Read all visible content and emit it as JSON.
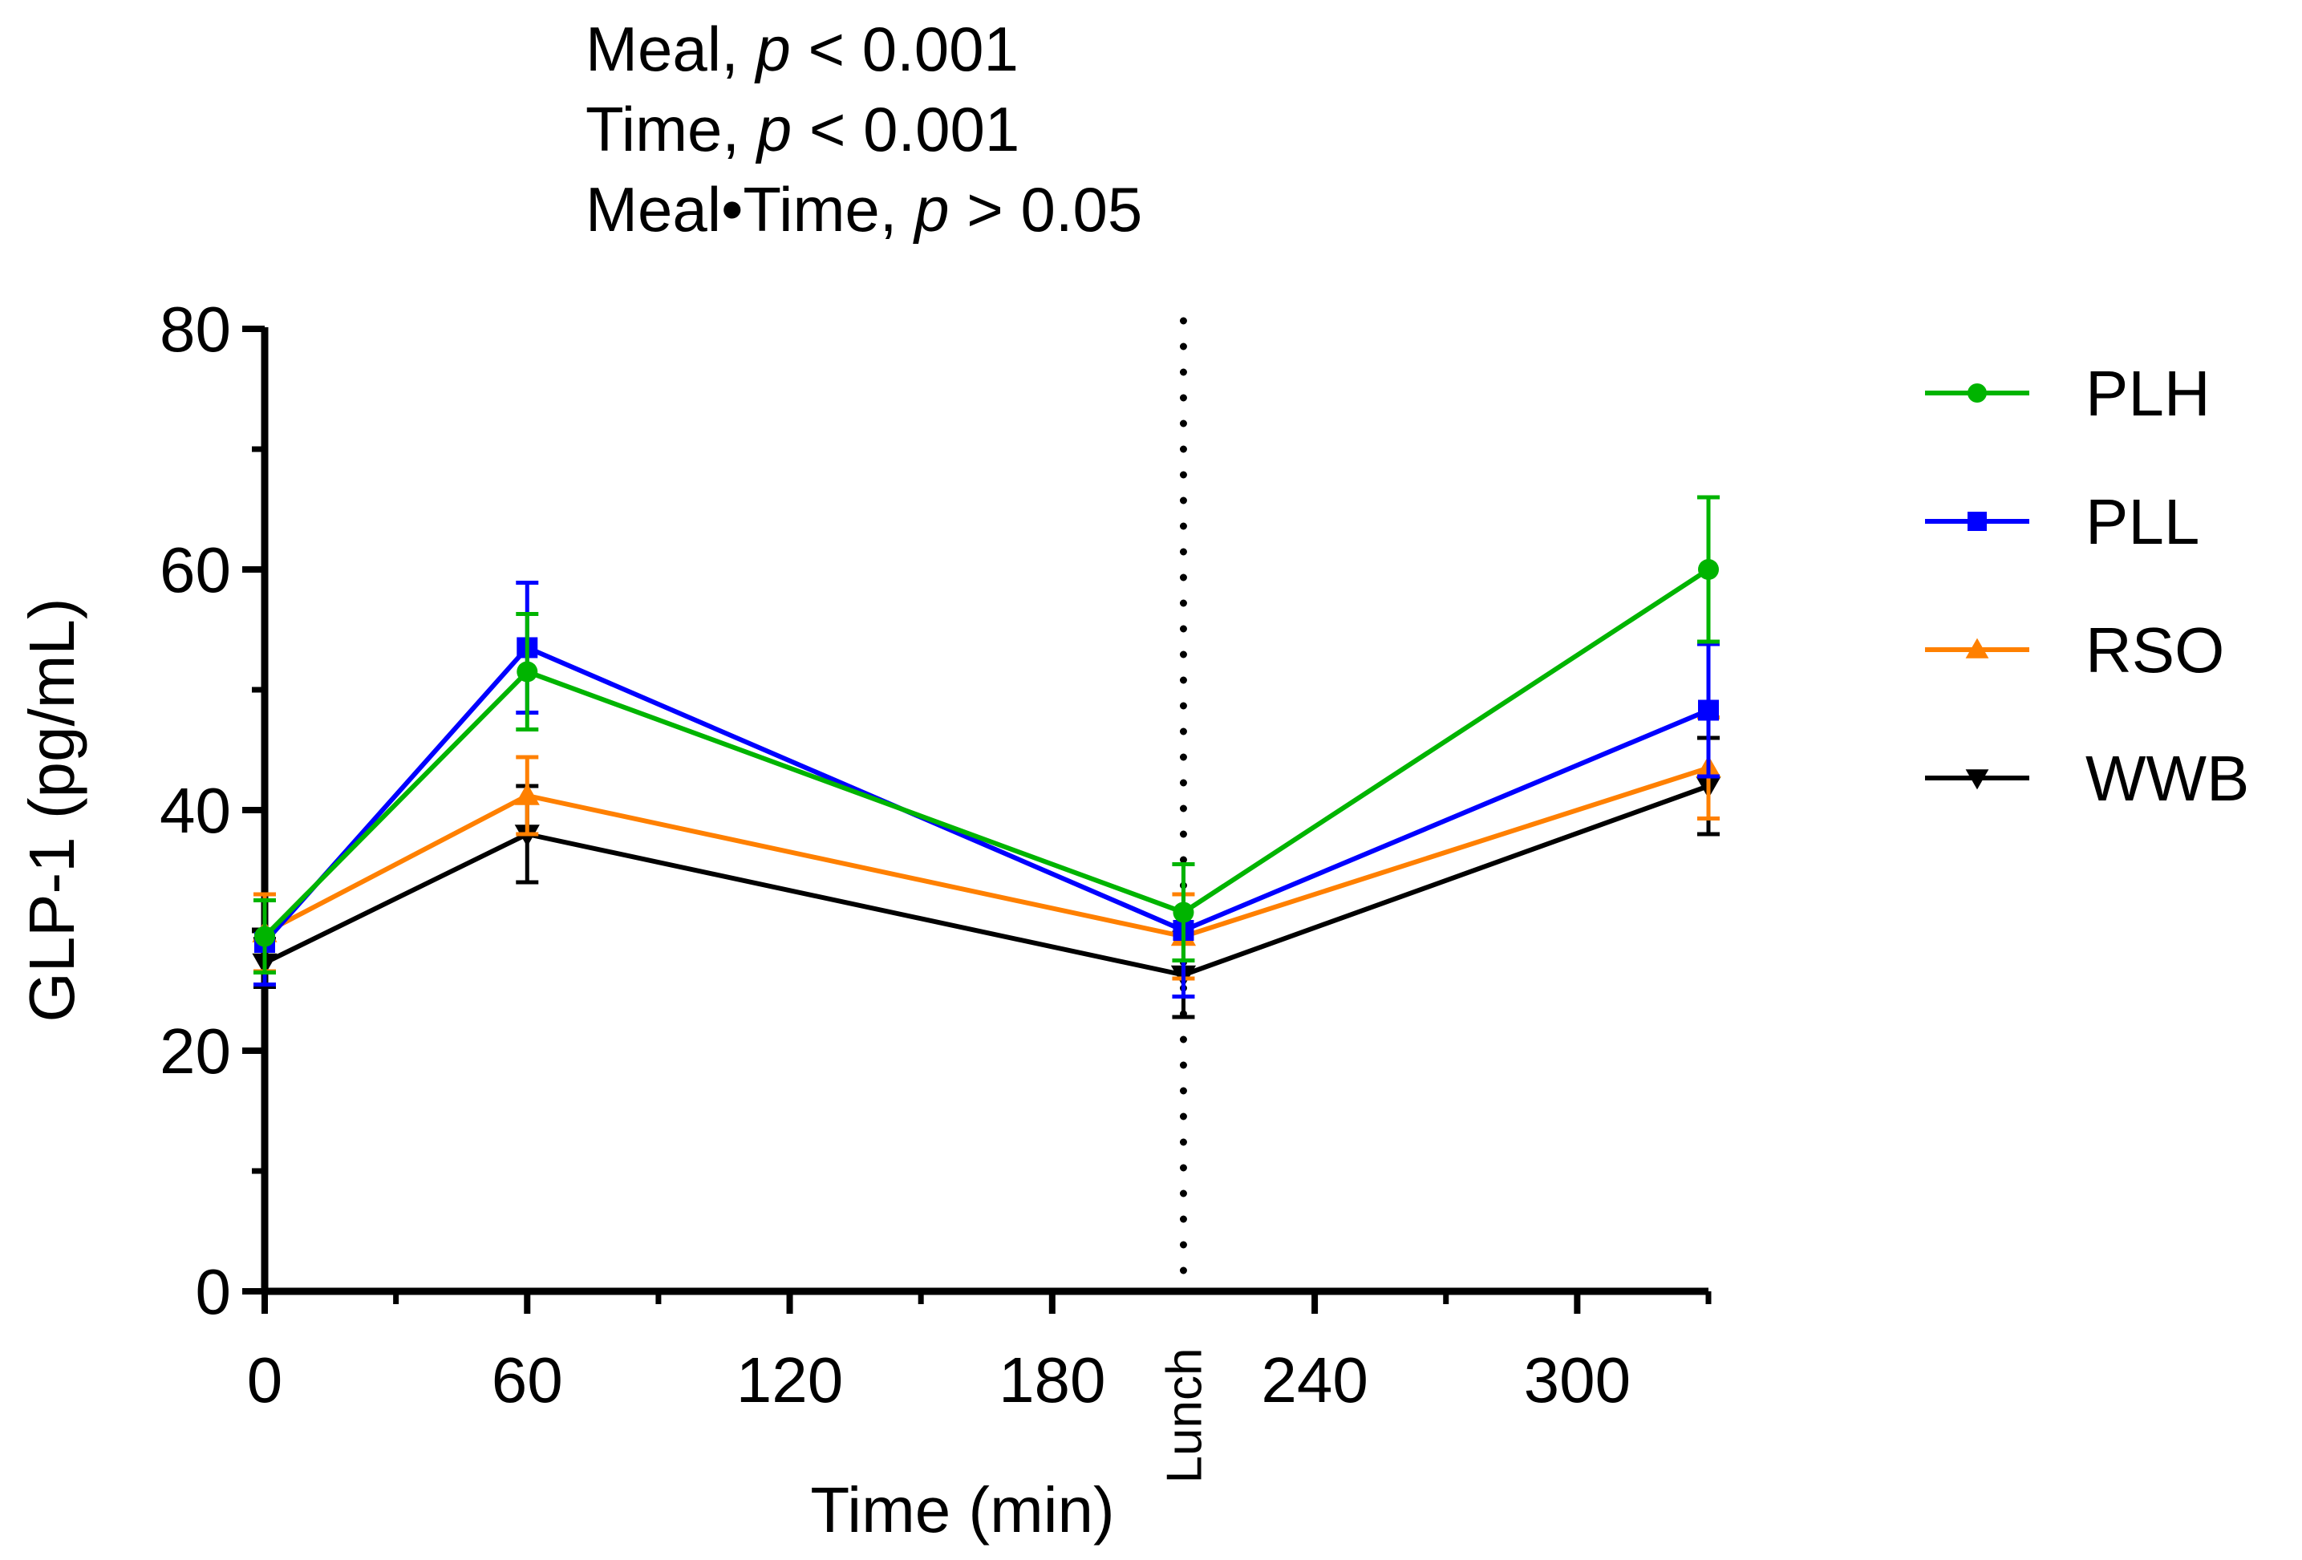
{
  "chart_data": {
    "type": "line",
    "title": "",
    "annotation_lines": [
      {
        "prefix": "Meal, ",
        "p": "p",
        "suffix": " < 0.001"
      },
      {
        "prefix": "Time, ",
        "p": "p",
        "suffix": " < 0.001"
      },
      {
        "prefix": "Meal•Time, ",
        "p": "p",
        "suffix": " > 0.05"
      }
    ],
    "xlabel": "Time (min)",
    "ylabel": "GLP-1 (pg/mL)",
    "xlim": [
      0,
      330
    ],
    "ylim": [
      0,
      80
    ],
    "x_ticks": [
      0,
      60,
      120,
      180,
      240,
      300
    ],
    "x_tick_labels": [
      "0",
      "60",
      "120",
      "180",
      "240",
      "300"
    ],
    "x_minor_ticks": [
      30,
      90,
      150,
      270
    ],
    "y_ticks": [
      0,
      20,
      40,
      60,
      80
    ],
    "y_tick_labels": [
      "0",
      "20",
      "40",
      "60",
      "80"
    ],
    "y_minor_ticks": [
      10,
      30,
      50,
      70
    ],
    "vline": {
      "x": 210,
      "label": "Lunch",
      "style": "dotted"
    },
    "x": [
      0,
      60,
      210,
      330
    ],
    "series": [
      {
        "name": "PLH",
        "color": "#00b400",
        "marker": "circle",
        "values": [
          29.5,
          51.5,
          31.5,
          60.0
        ],
        "error": [
          3.0,
          4.8,
          4.0,
          6.0
        ]
      },
      {
        "name": "PLL",
        "color": "#0000ff",
        "marker": "square",
        "values": [
          29.0,
          53.5,
          30.0,
          48.3
        ],
        "error": [
          3.5,
          5.4,
          5.5,
          5.5
        ]
      },
      {
        "name": "RSO",
        "color": "#ff8000",
        "marker": "triangle-up",
        "values": [
          29.8,
          41.2,
          29.5,
          43.5
        ],
        "error": [
          3.2,
          3.2,
          3.5,
          4.2
        ]
      },
      {
        "name": "WWB",
        "color": "#000000",
        "marker": "triangle-down",
        "values": [
          27.3,
          38.0,
          26.3,
          42.0
        ],
        "error": [
          2.0,
          4.0,
          3.5,
          4.0
        ]
      }
    ],
    "legend_position": "right"
  }
}
